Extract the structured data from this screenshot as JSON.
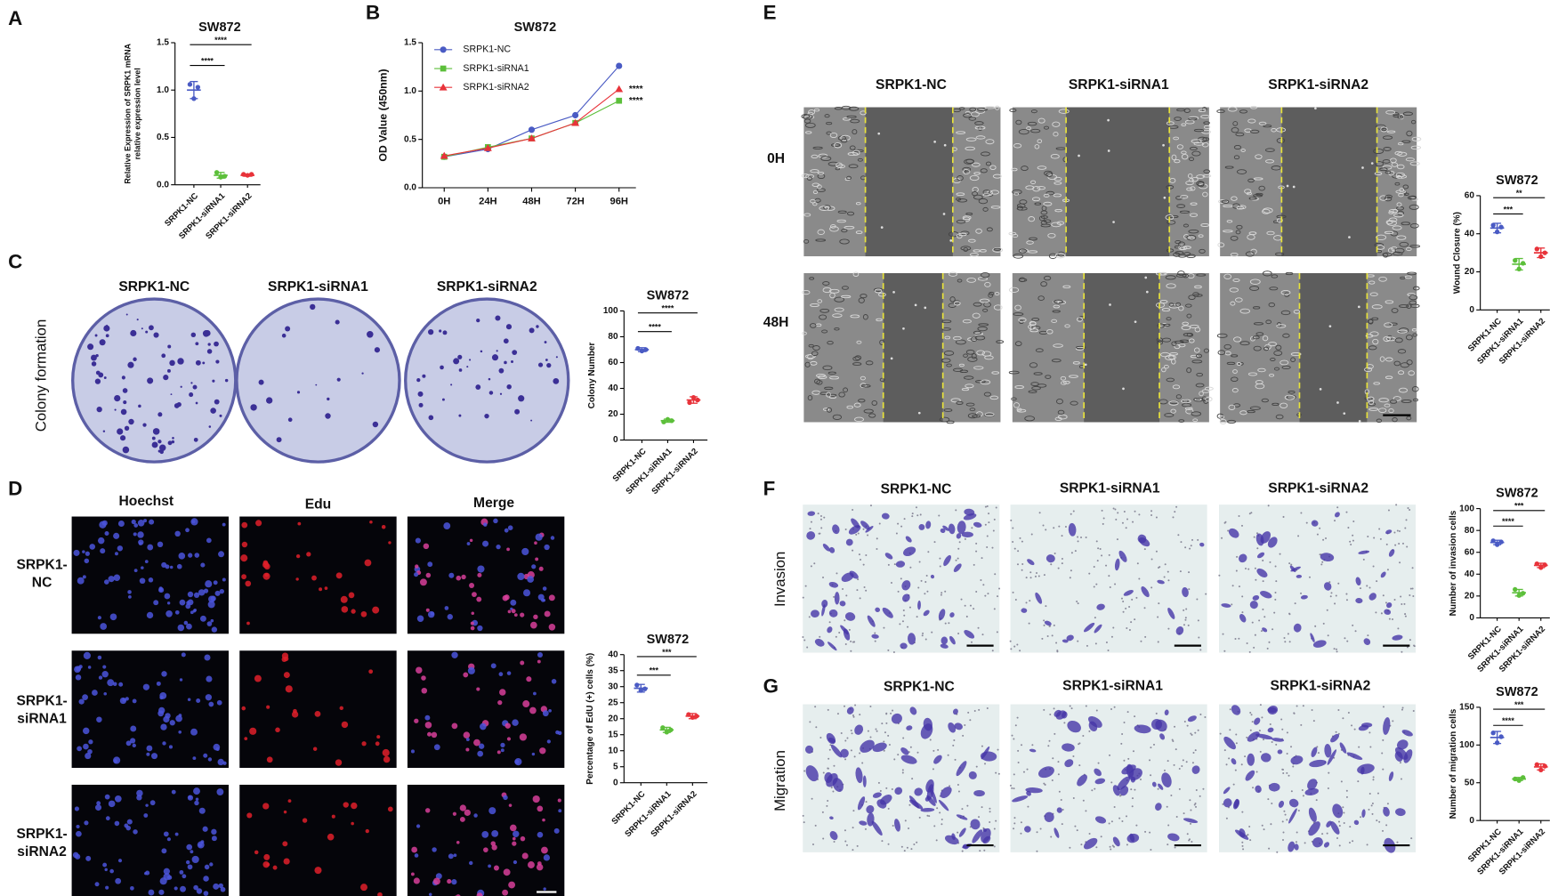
{
  "letters": [
    "A",
    "B",
    "C",
    "D",
    "E",
    "F",
    "G"
  ],
  "colony": {
    "columns": [
      "SRPK1-NC",
      "SRPK1-siRNA1",
      "SRPK1-siRNA2"
    ],
    "row_label": "Colony formation"
  },
  "edu": {
    "columns": [
      "Hoechst",
      "Edu",
      "Merge"
    ],
    "rows": [
      [
        "SRPK1-",
        "NC"
      ],
      [
        "SRPK1-",
        "siRNA1"
      ],
      [
        "SRPK1-",
        "siRNA2"
      ]
    ]
  },
  "wound": {
    "columns": [
      "SRPK1-NC",
      "SRPK1-siRNA1",
      "SRPK1-siRNA2"
    ],
    "rows": [
      "0H",
      "48H"
    ]
  },
  "invasion": {
    "columns": [
      "SRPK1-NC",
      "SRPK1-siRNA1",
      "SRPK1-siRNA2"
    ],
    "row_label": "Invasion"
  },
  "migration": {
    "columns": [
      "SRPK1-NC",
      "SRPK1-siRNA1",
      "SRPK1-siRNA2"
    ],
    "row_label": "Migration"
  },
  "chart_data": [
    {
      "type": "dot",
      "title": "SW872",
      "y_label": [
        "Relative Expression of SRPK1 mRNA",
        "relative expression level"
      ],
      "categories": [
        "SRPK1-NC",
        "SRPK1-siRNA1",
        "SRPK1-siRNA2"
      ],
      "colors": [
        "#4a5bc4",
        "#5cbf3a",
        "#e8333a"
      ],
      "values": [
        1,
        0.1,
        0.1
      ],
      "errors": [
        0.09,
        0.03,
        0.01
      ],
      "points": [
        [
          1.06,
          0.91,
          1.03
        ],
        [
          0.13,
          0.08,
          0.09
        ],
        [
          0.11,
          0.1,
          0.11
        ]
      ],
      "ylim": [
        0,
        1.5
      ],
      "yticks": [
        {
          "value": 0,
          "label": "0.0"
        },
        0.5,
        {
          "value": 1,
          "label": "1.0"
        },
        1.5
      ],
      "annotations": [
        {
          "text": "****",
          "between": [
            "SRPK1-NC",
            "SRPK1-siRNA1"
          ]
        },
        {
          "text": "****",
          "between": [
            "SRPK1-NC",
            "SRPK1-siRNA2"
          ]
        }
      ]
    },
    {
      "type": "line",
      "title": "SW872",
      "y_label": "OD Value (450nm)",
      "categories": [
        "0H",
        "24H",
        "48H",
        "72H",
        "96H"
      ],
      "series": [
        {
          "name": "SRPK1-NC",
          "color": "#4a5bc4",
          "marker": "circle",
          "values": [
            0.32,
            0.4,
            0.6,
            0.75,
            1.26
          ]
        },
        {
          "name": "SRPK1-siRNA1",
          "color": "#5cbf3a",
          "marker": "square",
          "values": [
            0.32,
            0.42,
            0.51,
            0.67,
            0.9
          ]
        },
        {
          "name": "SRPK1-siRNA2",
          "color": "#e8333a",
          "marker": "triangle",
          "values": [
            0.33,
            0.41,
            0.51,
            0.67,
            1.02
          ]
        }
      ],
      "ylim": [
        0,
        1.5
      ],
      "yticks": [
        {
          "value": 0,
          "label": "0.0"
        },
        0.5,
        {
          "value": 1,
          "label": "1.0"
        },
        1.5
      ],
      "annotations": [
        {
          "text": "****",
          "series": "SRPK1-siRNA2"
        },
        {
          "text": "****",
          "series": "SRPK1-siRNA1"
        }
      ]
    },
    {
      "type": "dot",
      "title": "SW872",
      "y_label": "Colony Number",
      "categories": [
        "SRPK1-NC",
        "SRPK1-siRNA1",
        "SRPK1-siRNA2"
      ],
      "colors": [
        "#4a5bc4",
        "#5cbf3a",
        "#e8333a"
      ],
      "values": [
        70,
        15,
        31
      ],
      "errors": [
        1.5,
        1.2,
        2.5
      ],
      "points": [
        [
          71,
          69,
          70
        ],
        [
          14,
          16,
          15
        ],
        [
          29,
          33,
          31
        ]
      ],
      "ylim": [
        0,
        100
      ],
      "yticks": [
        0,
        20,
        40,
        60,
        80,
        100
      ],
      "annotations": [
        {
          "text": "****",
          "between": [
            "SRPK1-NC",
            "SRPK1-siRNA1"
          ]
        },
        {
          "text": "****",
          "between": [
            "SRPK1-NC",
            "SRPK1-siRNA2"
          ]
        }
      ]
    },
    {
      "type": "dot",
      "title": "SW872",
      "y_label": "Percentage of EdU (+) cells (%)",
      "categories": [
        "SRPK1-NC",
        "SRPK1-siRNA1",
        "SRPK1-siRNA2"
      ],
      "colors": [
        "#4a5bc4",
        "#5cbf3a",
        "#e8333a"
      ],
      "values": [
        29.5,
        16.5,
        20.8
      ],
      "errors": [
        1.2,
        0.8,
        0.8
      ],
      "points": [
        [
          30.5,
          28.8,
          29.3
        ],
        [
          17.2,
          15.8,
          16.5
        ],
        [
          21.3,
          20.4,
          20.8
        ]
      ],
      "ylim": [
        0,
        40
      ],
      "yticks": [
        0,
        5,
        10,
        15,
        20,
        25,
        30,
        35,
        40
      ],
      "annotations": [
        {
          "text": "***",
          "between": [
            "SRPK1-NC",
            "SRPK1-siRNA1"
          ]
        },
        {
          "text": "***",
          "between": [
            "SRPK1-NC",
            "SRPK1-siRNA2"
          ]
        }
      ]
    },
    {
      "type": "dot",
      "title": "SW872",
      "y_label": "Wound Closure (%)",
      "categories": [
        "SRPK1-NC",
        "SRPK1-siRNA1",
        "SRPK1-siRNA2"
      ],
      "colors": [
        "#4a5bc4",
        "#5cbf3a",
        "#e8333a"
      ],
      "values": [
        43,
        24,
        30
      ],
      "errors": [
        2.5,
        3,
        2.5
      ],
      "points": [
        [
          44.5,
          41,
          43.5
        ],
        [
          26,
          21.5,
          24.5
        ],
        [
          32,
          28,
          30
        ]
      ],
      "ylim": [
        0,
        60
      ],
      "yticks": [
        0,
        20,
        40,
        60
      ],
      "annotations": [
        {
          "text": "***",
          "between": [
            "SRPK1-NC",
            "SRPK1-siRNA1"
          ]
        },
        {
          "text": "**",
          "between": [
            "SRPK1-NC",
            "SRPK1-siRNA2"
          ]
        }
      ]
    },
    {
      "type": "dot",
      "title": "SW872",
      "y_label": "Number of invasion cells",
      "categories": [
        "SRPK1-NC",
        "SRPK1-siRNA1",
        "SRPK1-siRNA2"
      ],
      "colors": [
        "#4a5bc4",
        "#5cbf3a",
        "#e8333a"
      ],
      "values": [
        69,
        23,
        48
      ],
      "errors": [
        2,
        3,
        2
      ],
      "points": [
        [
          70.5,
          67,
          69.5
        ],
        [
          26,
          20.5,
          22.5
        ],
        [
          49.5,
          46,
          48.5
        ]
      ],
      "ylim": [
        0,
        100
      ],
      "yticks": [
        0,
        20,
        40,
        60,
        80,
        100
      ],
      "annotations": [
        {
          "text": "****",
          "between": [
            "SRPK1-NC",
            "SRPK1-siRNA1"
          ]
        },
        {
          "text": "***",
          "between": [
            "SRPK1-NC",
            "SRPK1-siRNA2"
          ]
        }
      ]
    },
    {
      "type": "dot",
      "title": "SW872",
      "y_label": "Number of migration cells",
      "categories": [
        "SRPK1-NC",
        "SRPK1-siRNA1",
        "SRPK1-siRNA2"
      ],
      "colors": [
        "#4a5bc4",
        "#5cbf3a",
        "#e8333a"
      ],
      "values": [
        110,
        55,
        71
      ],
      "errors": [
        8,
        2,
        4
      ],
      "points": [
        [
          116,
          103,
          111
        ],
        [
          55,
          53,
          57
        ],
        [
          74,
          67,
          72
        ]
      ],
      "ylim": [
        0,
        150
      ],
      "yticks": [
        0,
        50,
        100,
        150
      ],
      "annotations": [
        {
          "text": "****",
          "between": [
            "SRPK1-NC",
            "SRPK1-siRNA1"
          ]
        },
        {
          "text": "***",
          "between": [
            "SRPK1-NC",
            "SRPK1-siRNA2"
          ]
        }
      ]
    }
  ]
}
